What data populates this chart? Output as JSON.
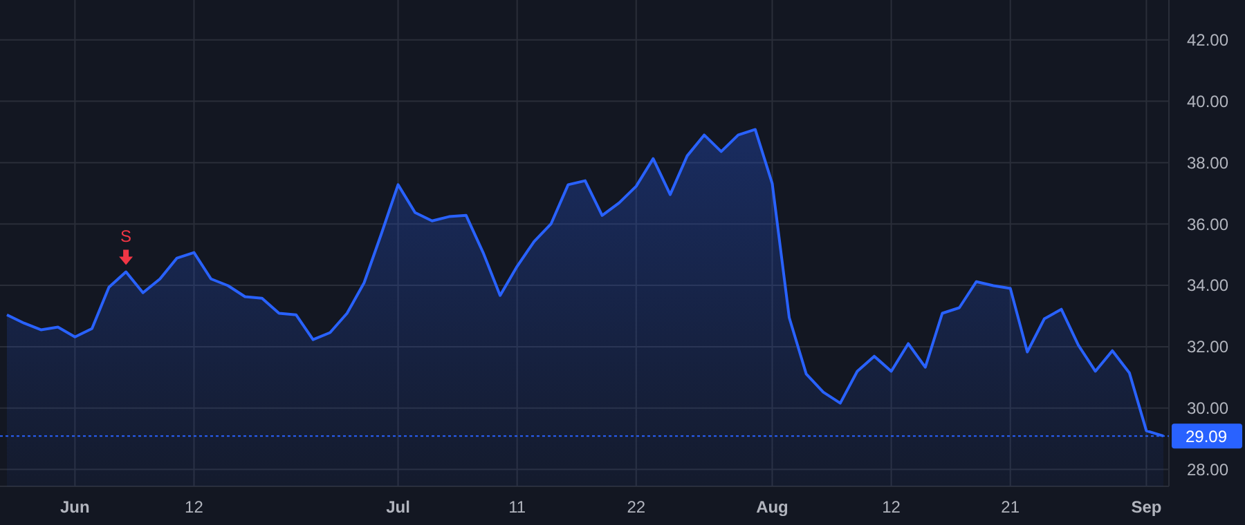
{
  "chart_data": {
    "type": "area",
    "categories": [
      null,
      null,
      null,
      null,
      "Jun",
      null,
      null,
      null,
      null,
      null,
      null,
      "12",
      null,
      null,
      null,
      null,
      null,
      null,
      null,
      null,
      null,
      null,
      null,
      "Jul",
      null,
      null,
      null,
      null,
      null,
      null,
      "11",
      null,
      null,
      null,
      null,
      null,
      null,
      "22",
      null,
      null,
      null,
      null,
      null,
      null,
      null,
      "Aug",
      null,
      null,
      null,
      null,
      null,
      null,
      "12",
      null,
      null,
      null,
      null,
      null,
      null,
      "21",
      null,
      null,
      null,
      null,
      null,
      null,
      null,
      "Sep",
      null
    ],
    "series": [
      {
        "color": "#2962ff",
        "values": [
          33.04,
          32.77,
          32.55,
          32.64,
          32.32,
          32.59,
          33.94,
          34.44,
          33.76,
          34.21,
          34.89,
          35.07,
          34.21,
          33.99,
          33.63,
          33.58,
          33.09,
          33.04,
          32.23,
          32.46,
          33.09,
          34.08,
          35.65,
          37.28,
          36.37,
          36.1,
          36.24,
          36.28,
          35.07,
          33.67,
          34.62,
          35.43,
          36.01,
          37.28,
          37.41,
          36.28,
          36.69,
          37.23,
          38.13,
          36.96,
          38.22,
          38.9,
          38.36,
          38.9,
          39.08,
          37.32,
          32.95,
          31.11,
          30.52,
          30.16,
          31.2,
          31.69,
          31.2,
          32.1,
          31.33,
          33.09,
          33.27,
          34.12,
          33.99,
          33.9,
          31.83,
          32.91,
          33.22,
          32.05,
          31.2,
          31.87,
          31.15,
          29.26,
          29.09
        ]
      }
    ],
    "ylim": [
      27.45,
      43.3
    ],
    "yticks": [
      {
        "value": 28,
        "label": "28.00"
      },
      {
        "value": 30,
        "label": "30.00"
      },
      {
        "value": 32,
        "label": "32.00"
      },
      {
        "value": 34,
        "label": "34.00"
      },
      {
        "value": 36,
        "label": "36.00"
      },
      {
        "value": 38,
        "label": "38.00"
      },
      {
        "value": 40,
        "label": "40.00"
      },
      {
        "value": 42,
        "label": "42.00"
      }
    ],
    "grid": true,
    "ref_lines": [
      {
        "axis": "y",
        "value": 29.09,
        "label": "29.09",
        "color": "#2962ff",
        "line_style": "dotted"
      }
    ],
    "annotations": [
      {
        "text": "S",
        "y": 34.44
      }
    ]
  }
}
